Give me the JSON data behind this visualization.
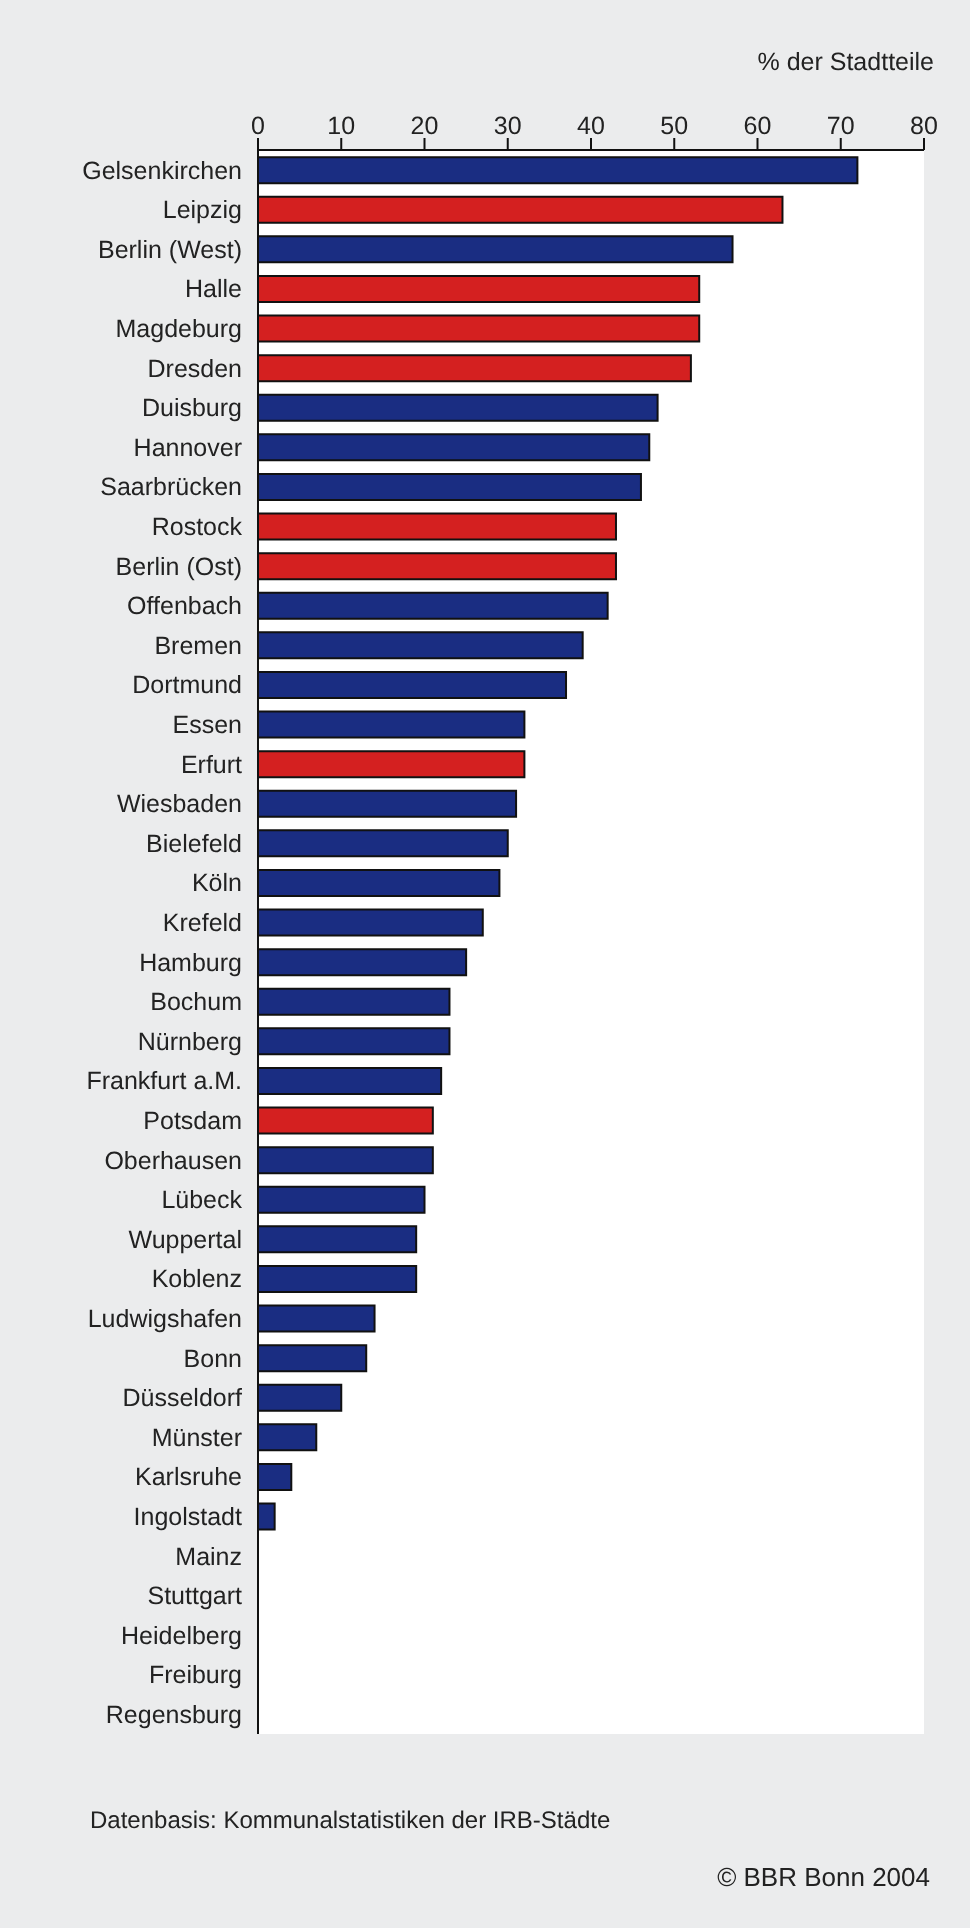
{
  "chart_data": {
    "type": "bar",
    "orientation": "horizontal",
    "xlabel": "% der Stadtteile",
    "categories": [
      "Gelsenkirchen",
      "Leipzig",
      "Berlin (West)",
      "Halle",
      "Magdeburg",
      "Dresden",
      "Duisburg",
      "Hannover",
      "Saarbrücken",
      "Rostock",
      "Berlin (Ost)",
      "Offenbach",
      "Bremen",
      "Dortmund",
      "Essen",
      "Erfurt",
      "Wiesbaden",
      "Bielefeld",
      "Köln",
      "Krefeld",
      "Hamburg",
      "Bochum",
      "Nürnberg",
      "Frankfurt a.M.",
      "Potsdam",
      "Oberhausen",
      "Lübeck",
      "Wuppertal",
      "Koblenz",
      "Ludwigshafen",
      "Bonn",
      "Düsseldorf",
      "Münster",
      "Karlsruhe",
      "Ingolstadt",
      "Mainz",
      "Stuttgart",
      "Heidelberg",
      "Freiburg",
      "Regensburg"
    ],
    "values": [
      72,
      63,
      57,
      53,
      53,
      52,
      48,
      47,
      46,
      43,
      43,
      42,
      39,
      37,
      32,
      32,
      31,
      30,
      29,
      27,
      25,
      23,
      23,
      22,
      21,
      21,
      20,
      19,
      19,
      14,
      13,
      10,
      7,
      4,
      2,
      0,
      0,
      0,
      0,
      0
    ],
    "colors": [
      "#1a2d82",
      "#d42020",
      "#1a2d82",
      "#d42020",
      "#d42020",
      "#d42020",
      "#1a2d82",
      "#1a2d82",
      "#1a2d82",
      "#d42020",
      "#d42020",
      "#1a2d82",
      "#1a2d82",
      "#1a2d82",
      "#1a2d82",
      "#d42020",
      "#1a2d82",
      "#1a2d82",
      "#1a2d82",
      "#1a2d82",
      "#1a2d82",
      "#1a2d82",
      "#1a2d82",
      "#1a2d82",
      "#d42020",
      "#1a2d82",
      "#1a2d82",
      "#1a2d82",
      "#1a2d82",
      "#1a2d82",
      "#1a2d82",
      "#1a2d82",
      "#1a2d82",
      "#1a2d82",
      "#1a2d82",
      "#1a2d82",
      "#1a2d82",
      "#1a2d82",
      "#1a2d82",
      "#1a2d82"
    ],
    "xlim": [
      0,
      80
    ],
    "xticks": [
      0,
      10,
      20,
      30,
      40,
      50,
      60,
      70,
      80
    ],
    "legend": false,
    "annotations": [
      "Datenbasis: Kommunalstatistiken der IRB-Städte",
      "© BBR Bonn 2004"
    ]
  }
}
